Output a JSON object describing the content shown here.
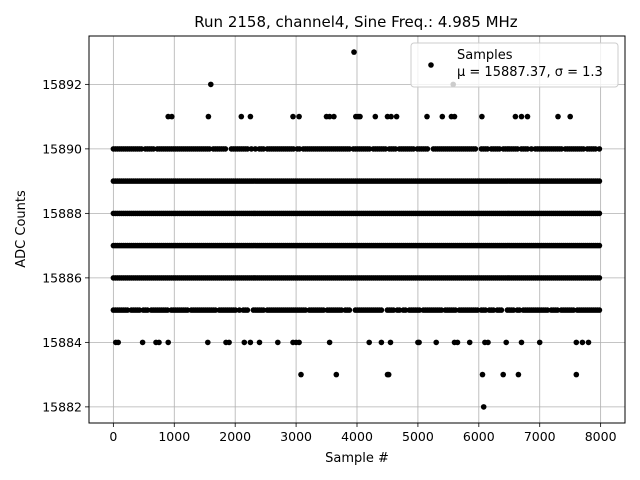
{
  "chart_data": {
    "type": "scatter",
    "title": "Run 2158, channel4, Sine Freq.: 4.985 MHz",
    "xlabel": "Sample #",
    "ylabel": "ADC Counts",
    "xlim": [
      -400,
      8400
    ],
    "ylim": [
      15881.5,
      15893.5
    ],
    "xticks": [
      0,
      1000,
      2000,
      3000,
      4000,
      5000,
      6000,
      7000,
      8000
    ],
    "yticks": [
      15882,
      15884,
      15886,
      15888,
      15890,
      15892
    ],
    "grid": true,
    "marker_color": "#000000",
    "legend": {
      "placement": "top-right",
      "entries": [
        {
          "label": "Samples",
          "detail": "μ = 15887.37, σ = 1.3"
        }
      ]
    },
    "series": [
      {
        "name": "Samples",
        "sample_count": 8000,
        "dense_levels": [
          15885,
          15886,
          15887,
          15888,
          15889,
          15890
        ],
        "sparse_points": {
          "15891": [
            900,
            960,
            1560,
            2100,
            2250,
            2950,
            3050,
            3500,
            3550,
            3620,
            3980,
            4020,
            4050,
            4300,
            4500,
            4560,
            4650,
            5150,
            5400,
            5550,
            5600,
            6050,
            6600,
            6700,
            6800,
            7300,
            7500
          ],
          "15884": [
            40,
            80,
            480,
            700,
            750,
            900,
            1550,
            1850,
            1900,
            2150,
            2250,
            2400,
            2700,
            2950,
            3000,
            3050,
            3550,
            4200,
            4400,
            4550,
            5000,
            5020,
            5300,
            5600,
            5650,
            5850,
            6100,
            6150,
            6450,
            6700,
            7000,
            7600,
            7700,
            7800
          ],
          "15883": [
            3080,
            3660,
            4500,
            4520,
            6060,
            6400,
            6650,
            7600
          ],
          "15892": [
            1600,
            5580
          ],
          "15893": [
            3950
          ],
          "15882": [
            6080
          ]
        }
      }
    ]
  }
}
